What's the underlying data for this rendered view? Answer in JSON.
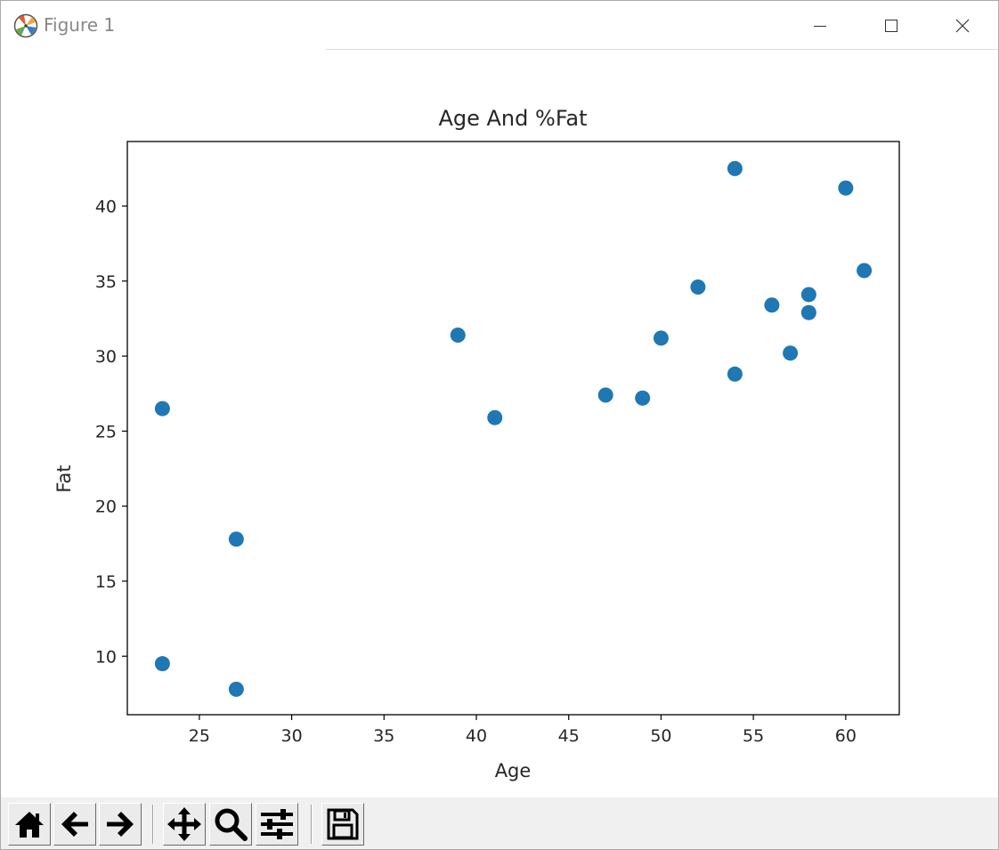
{
  "window": {
    "title": "Figure 1",
    "app_icon": "matplotlib-logo-icon",
    "controls": [
      "minimize-icon",
      "maximize-icon",
      "close-icon"
    ]
  },
  "toolbar": {
    "buttons": [
      "home-icon",
      "back-arrow-icon",
      "forward-arrow-icon",
      "pan-move-icon",
      "zoom-magnifier-icon",
      "configure-subplots-icon",
      "save-floppy-icon"
    ]
  },
  "colors": {
    "marker": "#1f77b4",
    "toolbar_bg": "#f0f0f0"
  },
  "chart_data": {
    "type": "scatter",
    "title": "Age And %Fat",
    "xlabel": "Age",
    "ylabel": "Fat",
    "xlim": [
      21.1,
      62.9
    ],
    "ylim": [
      6.1,
      44.3
    ],
    "xticks": [
      25,
      30,
      35,
      40,
      45,
      50,
      55,
      60
    ],
    "yticks": [
      10,
      15,
      20,
      25,
      30,
      35,
      40
    ],
    "grid": false,
    "points": [
      {
        "x": 23,
        "y": 9.5
      },
      {
        "x": 23,
        "y": 26.5
      },
      {
        "x": 27,
        "y": 7.8
      },
      {
        "x": 27,
        "y": 17.8
      },
      {
        "x": 39,
        "y": 31.4
      },
      {
        "x": 41,
        "y": 25.9
      },
      {
        "x": 47,
        "y": 27.4
      },
      {
        "x": 49,
        "y": 27.2
      },
      {
        "x": 50,
        "y": 31.2
      },
      {
        "x": 52,
        "y": 34.6
      },
      {
        "x": 54,
        "y": 42.5
      },
      {
        "x": 54,
        "y": 28.8
      },
      {
        "x": 56,
        "y": 33.4
      },
      {
        "x": 57,
        "y": 30.2
      },
      {
        "x": 58,
        "y": 34.1
      },
      {
        "x": 58,
        "y": 32.9
      },
      {
        "x": 60,
        "y": 41.2
      },
      {
        "x": 61,
        "y": 35.7
      }
    ]
  }
}
